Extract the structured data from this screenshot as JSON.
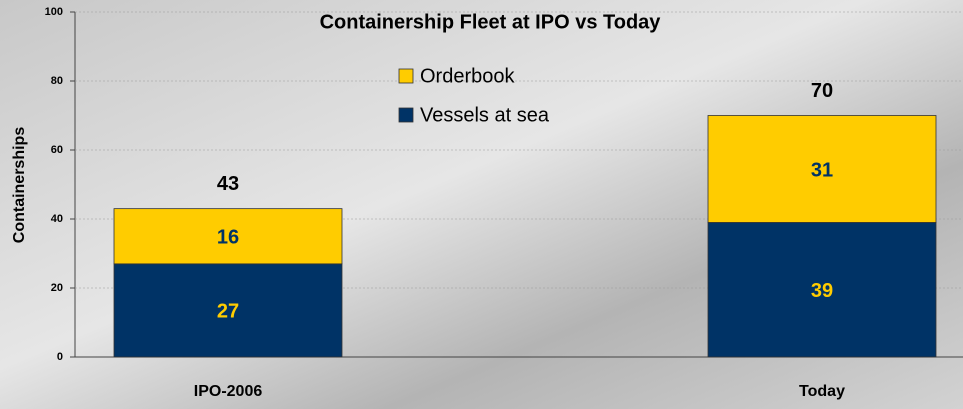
{
  "chart_data": {
    "type": "stacked_bar",
    "title": "Containership Fleet at IPO vs Today",
    "y_label": "Containerships",
    "categories": [
      "IPO-2006",
      "Today"
    ],
    "series": [
      {
        "name": "Vessels at sea",
        "color": "#003366",
        "label_color": "#ffcc00",
        "values": [
          27,
          39
        ]
      },
      {
        "name": "Orderbook",
        "color": "#ffcc00",
        "label_color": "#003366",
        "values": [
          16,
          31
        ]
      }
    ],
    "totals": [
      43,
      70
    ],
    "ylim": [
      0,
      100
    ],
    "yticks": [
      0,
      20,
      40,
      60,
      80,
      100
    ],
    "grid": true
  }
}
